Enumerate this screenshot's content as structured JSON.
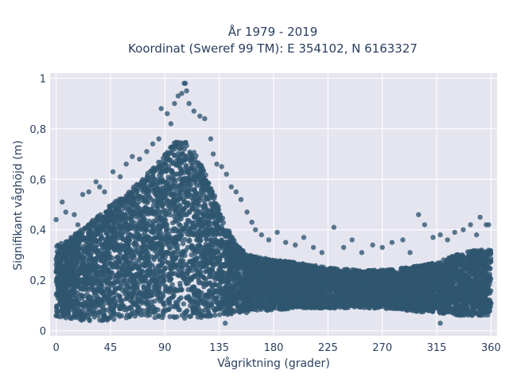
{
  "chart_data": {
    "type": "scatter",
    "title_lines": [
      "År 1979 - 2019",
      "Koordinat (Sweref 99 TM): E 354102, N 6163327"
    ],
    "xlabel": "Vågriktning (grader)",
    "ylabel": "Signifikant våghöjd (m)",
    "xlim": [
      -5,
      365
    ],
    "ylim": [
      -0.02,
      1.02
    ],
    "x_ticks": [
      0,
      45,
      90,
      135,
      180,
      225,
      270,
      315,
      360
    ],
    "x_tick_labels": [
      "0",
      "45",
      "90",
      "135",
      "180",
      "225",
      "270",
      "315",
      "360"
    ],
    "y_ticks": [
      0,
      0.2,
      0.4,
      0.6,
      0.8,
      1
    ],
    "y_tick_labels": [
      "0",
      "0,2",
      "0,4",
      "0,6",
      "0,8",
      "1"
    ],
    "grid": true,
    "marker_color": "#2f5670",
    "plot_background": "#e5e5f0",
    "envelope": {
      "direction": [
        0,
        10,
        20,
        30,
        45,
        60,
        75,
        90,
        100,
        110,
        120,
        130,
        140,
        150,
        160,
        170,
        180,
        200,
        225,
        250,
        270,
        290,
        315,
        330,
        345,
        360
      ],
      "upper_height": [
        0.34,
        0.36,
        0.4,
        0.44,
        0.5,
        0.55,
        0.62,
        0.7,
        0.76,
        0.74,
        0.66,
        0.55,
        0.42,
        0.34,
        0.3,
        0.29,
        0.28,
        0.27,
        0.25,
        0.24,
        0.24,
        0.25,
        0.27,
        0.3,
        0.32,
        0.32
      ],
      "lower_height": [
        0.05,
        0.05,
        0.04,
        0.04,
        0.04,
        0.05,
        0.05,
        0.05,
        0.05,
        0.05,
        0.05,
        0.06,
        0.06,
        0.07,
        0.07,
        0.08,
        0.08,
        0.09,
        0.09,
        0.09,
        0.09,
        0.08,
        0.07,
        0.06,
        0.06,
        0.06
      ]
    },
    "outliers": [
      {
        "x": 0,
        "y": 0.44
      },
      {
        "x": 5,
        "y": 0.51
      },
      {
        "x": 8,
        "y": 0.47
      },
      {
        "x": 15,
        "y": 0.46
      },
      {
        "x": 18,
        "y": 0.42
      },
      {
        "x": 22,
        "y": 0.54
      },
      {
        "x": 27,
        "y": 0.55
      },
      {
        "x": 33,
        "y": 0.59
      },
      {
        "x": 36,
        "y": 0.57
      },
      {
        "x": 40,
        "y": 0.55
      },
      {
        "x": 47,
        "y": 0.63
      },
      {
        "x": 53,
        "y": 0.61
      },
      {
        "x": 58,
        "y": 0.66
      },
      {
        "x": 63,
        "y": 0.69
      },
      {
        "x": 69,
        "y": 0.68
      },
      {
        "x": 75,
        "y": 0.71
      },
      {
        "x": 80,
        "y": 0.74
      },
      {
        "x": 85,
        "y": 0.76
      },
      {
        "x": 87,
        "y": 0.88
      },
      {
        "x": 92,
        "y": 0.86
      },
      {
        "x": 95,
        "y": 0.82
      },
      {
        "x": 98,
        "y": 0.9
      },
      {
        "x": 101,
        "y": 0.93
      },
      {
        "x": 104,
        "y": 0.94
      },
      {
        "x": 106,
        "y": 0.98
      },
      {
        "x": 108,
        "y": 0.95
      },
      {
        "x": 110,
        "y": 0.9
      },
      {
        "x": 114,
        "y": 0.87
      },
      {
        "x": 119,
        "y": 0.85
      },
      {
        "x": 123,
        "y": 0.84
      },
      {
        "x": 128,
        "y": 0.76
      },
      {
        "x": 130,
        "y": 0.7
      },
      {
        "x": 133,
        "y": 0.66
      },
      {
        "x": 137,
        "y": 0.65
      },
      {
        "x": 141,
        "y": 0.62
      },
      {
        "x": 145,
        "y": 0.57
      },
      {
        "x": 149,
        "y": 0.55
      },
      {
        "x": 153,
        "y": 0.52
      },
      {
        "x": 158,
        "y": 0.47
      },
      {
        "x": 162,
        "y": 0.43
      },
      {
        "x": 165,
        "y": 0.4
      },
      {
        "x": 170,
        "y": 0.38
      },
      {
        "x": 176,
        "y": 0.36
      },
      {
        "x": 183,
        "y": 0.39
      },
      {
        "x": 190,
        "y": 0.35
      },
      {
        "x": 198,
        "y": 0.34
      },
      {
        "x": 205,
        "y": 0.37
      },
      {
        "x": 213,
        "y": 0.33
      },
      {
        "x": 220,
        "y": 0.31
      },
      {
        "x": 230,
        "y": 0.41
      },
      {
        "x": 238,
        "y": 0.33
      },
      {
        "x": 245,
        "y": 0.36
      },
      {
        "x": 253,
        "y": 0.31
      },
      {
        "x": 262,
        "y": 0.34
      },
      {
        "x": 270,
        "y": 0.33
      },
      {
        "x": 278,
        "y": 0.35
      },
      {
        "x": 287,
        "y": 0.36
      },
      {
        "x": 293,
        "y": 0.31
      },
      {
        "x": 300,
        "y": 0.46
      },
      {
        "x": 305,
        "y": 0.42
      },
      {
        "x": 312,
        "y": 0.37
      },
      {
        "x": 318,
        "y": 0.38
      },
      {
        "x": 324,
        "y": 0.36
      },
      {
        "x": 330,
        "y": 0.39
      },
      {
        "x": 337,
        "y": 0.4
      },
      {
        "x": 343,
        "y": 0.42
      },
      {
        "x": 348,
        "y": 0.38
      },
      {
        "x": 351,
        "y": 0.45
      },
      {
        "x": 356,
        "y": 0.42
      },
      {
        "x": 358,
        "y": 0.42
      },
      {
        "x": 318,
        "y": 0.03
      },
      {
        "x": 140,
        "y": 0.03
      },
      {
        "x": 107,
        "y": 0.98
      }
    ]
  }
}
